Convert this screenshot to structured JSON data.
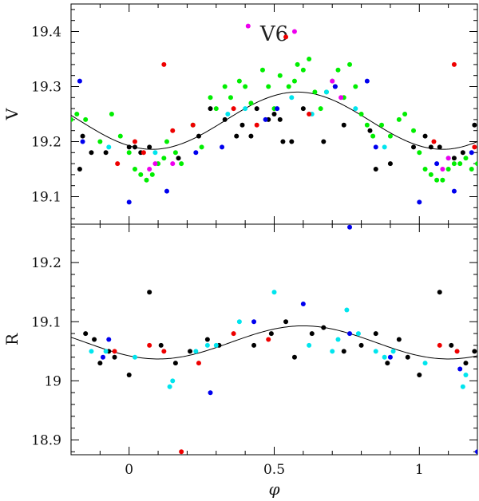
{
  "chart_data": [
    {
      "type": "scatter",
      "panel": "top",
      "annotation": "V6",
      "ylabel": "V",
      "xlim": [
        -0.2,
        1.2
      ],
      "ylim": [
        19.45,
        19.05
      ],
      "y_inverted": true,
      "yticks": [
        19.1,
        19.2,
        19.3,
        19.4
      ],
      "ytick_labels": [
        "19.1",
        "19.2",
        "19.3",
        "19.4"
      ],
      "model_curve": {
        "mean": 19.238,
        "amplitude": 0.052,
        "phase_of_minimum": 0.58
      },
      "series": [
        {
          "name": "black",
          "color": "#000000",
          "points": [
            [
              -0.17,
              19.15
            ],
            [
              -0.16,
              19.21
            ],
            [
              -0.13,
              19.18
            ],
            [
              -0.08,
              19.18
            ],
            [
              0.0,
              19.19
            ],
            [
              0.02,
              19.19
            ],
            [
              0.04,
              19.18
            ],
            [
              0.07,
              19.19
            ],
            [
              0.17,
              19.17
            ],
            [
              0.24,
              19.21
            ],
            [
              0.28,
              19.26
            ],
            [
              0.33,
              19.24
            ],
            [
              0.37,
              19.21
            ],
            [
              0.39,
              19.23
            ],
            [
              0.42,
              19.21
            ],
            [
              0.44,
              19.26
            ],
            [
              0.48,
              19.24
            ],
            [
              0.5,
              19.25
            ],
            [
              0.52,
              19.24
            ],
            [
              0.53,
              19.2
            ],
            [
              0.56,
              19.2
            ],
            [
              0.6,
              19.26
            ],
            [
              0.67,
              19.2
            ],
            [
              0.71,
              19.3
            ],
            [
              0.74,
              19.23
            ],
            [
              0.83,
              19.22
            ],
            [
              0.85,
              19.15
            ],
            [
              0.9,
              19.16
            ],
            [
              0.98,
              19.19
            ],
            [
              1.02,
              19.21
            ],
            [
              1.04,
              19.19
            ],
            [
              1.07,
              19.19
            ],
            [
              1.12,
              19.17
            ],
            [
              1.15,
              19.18
            ],
            [
              1.19,
              19.23
            ]
          ]
        },
        {
          "name": "green",
          "color": "#00ee00",
          "points": [
            [
              -0.2,
              19.24
            ],
            [
              -0.18,
              19.25
            ],
            [
              -0.15,
              19.24
            ],
            [
              -0.1,
              19.2
            ],
            [
              -0.06,
              19.25
            ],
            [
              -0.03,
              19.21
            ],
            [
              0.0,
              19.18
            ],
            [
              0.02,
              19.15
            ],
            [
              0.04,
              19.14
            ],
            [
              0.06,
              19.13
            ],
            [
              0.08,
              19.14
            ],
            [
              0.1,
              19.16
            ],
            [
              0.12,
              19.17
            ],
            [
              0.13,
              19.2
            ],
            [
              0.16,
              19.18
            ],
            [
              0.18,
              19.16
            ],
            [
              0.22,
              19.23
            ],
            [
              0.25,
              19.19
            ],
            [
              0.28,
              19.28
            ],
            [
              0.3,
              19.26
            ],
            [
              0.33,
              19.3
            ],
            [
              0.35,
              19.28
            ],
            [
              0.38,
              19.31
            ],
            [
              0.4,
              19.3
            ],
            [
              0.42,
              19.27
            ],
            [
              0.46,
              19.33
            ],
            [
              0.48,
              19.3
            ],
            [
              0.5,
              19.26
            ],
            [
              0.52,
              19.32
            ],
            [
              0.55,
              19.3
            ],
            [
              0.57,
              19.31
            ],
            [
              0.58,
              19.34
            ],
            [
              0.6,
              19.33
            ],
            [
              0.62,
              19.35
            ],
            [
              0.64,
              19.29
            ],
            [
              0.66,
              19.26
            ],
            [
              0.68,
              19.29
            ],
            [
              0.7,
              19.31
            ],
            [
              0.72,
              19.33
            ],
            [
              0.74,
              19.28
            ],
            [
              0.76,
              19.34
            ],
            [
              0.78,
              19.3
            ],
            [
              0.8,
              19.25
            ],
            [
              0.82,
              19.23
            ],
            [
              0.84,
              19.21
            ],
            [
              0.87,
              19.23
            ],
            [
              0.9,
              19.21
            ],
            [
              0.93,
              19.24
            ],
            [
              0.95,
              19.25
            ],
            [
              0.98,
              19.22
            ],
            [
              1.0,
              19.18
            ],
            [
              1.02,
              19.15
            ],
            [
              1.04,
              19.14
            ],
            [
              1.06,
              19.13
            ],
            [
              1.08,
              19.13
            ],
            [
              1.1,
              19.15
            ],
            [
              1.12,
              19.16
            ],
            [
              1.14,
              19.16
            ],
            [
              1.16,
              19.17
            ],
            [
              1.18,
              19.15
            ],
            [
              1.2,
              19.16
            ]
          ]
        },
        {
          "name": "cyan",
          "color": "#00e5ee",
          "points": [
            [
              -0.07,
              19.19
            ],
            [
              0.09,
              19.18
            ],
            [
              0.34,
              19.25
            ],
            [
              0.4,
              19.26
            ],
            [
              0.56,
              19.28
            ],
            [
              0.63,
              19.25
            ],
            [
              0.68,
              19.29
            ],
            [
              0.78,
              19.26
            ],
            [
              0.88,
              19.19
            ],
            [
              1.1,
              19.17
            ]
          ]
        },
        {
          "name": "blue",
          "color": "#0000ee",
          "points": [
            [
              -0.17,
              19.31
            ],
            [
              -0.16,
              19.2
            ],
            [
              0.0,
              19.09
            ],
            [
              0.13,
              19.11
            ],
            [
              0.23,
              19.18
            ],
            [
              0.32,
              19.19
            ],
            [
              0.47,
              19.24
            ],
            [
              0.51,
              19.26
            ],
            [
              0.71,
              19.3
            ],
            [
              0.82,
              19.31
            ],
            [
              0.85,
              19.19
            ],
            [
              1.0,
              19.09
            ],
            [
              1.06,
              19.16
            ],
            [
              1.12,
              19.11
            ],
            [
              1.18,
              19.18
            ]
          ]
        },
        {
          "name": "red",
          "color": "#ee0000",
          "points": [
            [
              -0.04,
              19.16
            ],
            [
              0.02,
              19.2
            ],
            [
              0.05,
              19.18
            ],
            [
              0.12,
              19.34
            ],
            [
              0.15,
              19.22
            ],
            [
              0.22,
              19.23
            ],
            [
              0.36,
              19.26
            ],
            [
              0.44,
              19.23
            ],
            [
              0.54,
              19.39
            ],
            [
              0.62,
              19.25
            ],
            [
              1.05,
              19.2
            ],
            [
              1.12,
              19.34
            ],
            [
              1.19,
              19.19
            ]
          ]
        },
        {
          "name": "magenta",
          "color": "#ee00ee",
          "points": [
            [
              0.07,
              19.15
            ],
            [
              0.09,
              19.16
            ],
            [
              0.15,
              19.16
            ],
            [
              0.41,
              19.41
            ],
            [
              0.57,
              19.4
            ],
            [
              0.7,
              19.31
            ],
            [
              0.73,
              19.28
            ],
            [
              1.08,
              19.15
            ],
            [
              1.1,
              19.17
            ]
          ]
        }
      ]
    },
    {
      "type": "scatter",
      "panel": "bottom",
      "xlabel": "φ",
      "ylabel": "R",
      "xlim": [
        -0.2,
        1.2
      ],
      "ylim": [
        19.265,
        18.875
      ],
      "y_inverted": true,
      "yticks": [
        18.9,
        19.0,
        19.1,
        19.2
      ],
      "ytick_labels": [
        "18.9",
        "19",
        "19.1",
        "19.2"
      ],
      "xticks": [
        0,
        0.5,
        1
      ],
      "xtick_labels": [
        "0",
        "0.5",
        "1"
      ],
      "model_curve": {
        "mean": 19.065,
        "amplitude": 0.028,
        "phase_of_minimum": 0.6
      },
      "series": [
        {
          "name": "black",
          "color": "#000000",
          "points": [
            [
              -0.15,
              19.08
            ],
            [
              -0.12,
              19.07
            ],
            [
              -0.1,
              19.03
            ],
            [
              -0.07,
              19.05
            ],
            [
              -0.05,
              19.04
            ],
            [
              0.0,
              19.01
            ],
            [
              0.07,
              19.15
            ],
            [
              0.11,
              19.06
            ],
            [
              0.16,
              19.03
            ],
            [
              0.21,
              19.05
            ],
            [
              0.27,
              19.07
            ],
            [
              0.31,
              19.06
            ],
            [
              0.43,
              19.06
            ],
            [
              0.49,
              19.08
            ],
            [
              0.54,
              19.1
            ],
            [
              0.57,
              19.04
            ],
            [
              0.63,
              19.08
            ],
            [
              0.67,
              19.09
            ],
            [
              0.74,
              19.05
            ],
            [
              0.8,
              19.06
            ],
            [
              0.85,
              19.08
            ],
            [
              0.89,
              19.03
            ],
            [
              0.93,
              19.07
            ],
            [
              0.96,
              19.04
            ],
            [
              1.0,
              19.01
            ],
            [
              1.07,
              19.15
            ],
            [
              1.11,
              19.06
            ],
            [
              1.16,
              19.03
            ],
            [
              1.19,
              19.05
            ]
          ]
        },
        {
          "name": "cyan",
          "color": "#00e5ee",
          "points": [
            [
              -0.13,
              19.05
            ],
            [
              -0.08,
              19.05
            ],
            [
              0.02,
              19.04
            ],
            [
              0.14,
              18.99
            ],
            [
              0.15,
              19.0
            ],
            [
              0.23,
              19.05
            ],
            [
              0.27,
              19.06
            ],
            [
              0.3,
              19.06
            ],
            [
              0.38,
              19.1
            ],
            [
              0.5,
              19.15
            ],
            [
              0.62,
              19.06
            ],
            [
              0.7,
              19.05
            ],
            [
              0.72,
              19.07
            ],
            [
              0.75,
              19.12
            ],
            [
              0.79,
              19.08
            ],
            [
              0.85,
              19.05
            ],
            [
              0.88,
              19.04
            ],
            [
              0.91,
              19.05
            ],
            [
              1.02,
              19.03
            ],
            [
              1.15,
              18.99
            ],
            [
              1.16,
              19.01
            ]
          ]
        },
        {
          "name": "blue",
          "color": "#0000ee",
          "points": [
            [
              -0.09,
              19.04
            ],
            [
              -0.07,
              19.07
            ],
            [
              0.28,
              18.98
            ],
            [
              0.43,
              19.1
            ],
            [
              0.6,
              19.13
            ],
            [
              0.76,
              19.26
            ],
            [
              0.76,
              19.08
            ],
            [
              0.9,
              19.04
            ],
            [
              1.14,
              19.02
            ],
            [
              1.2,
              18.88
            ]
          ]
        },
        {
          "name": "red",
          "color": "#ee0000",
          "points": [
            [
              -0.05,
              19.05
            ],
            [
              0.07,
              19.06
            ],
            [
              0.12,
              19.05
            ],
            [
              0.24,
              19.03
            ],
            [
              0.36,
              19.08
            ],
            [
              0.48,
              19.07
            ],
            [
              1.07,
              19.06
            ],
            [
              1.13,
              19.05
            ],
            [
              0.18,
              18.88
            ]
          ]
        }
      ]
    }
  ]
}
